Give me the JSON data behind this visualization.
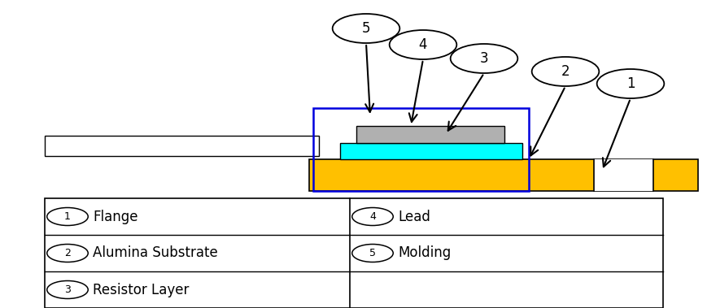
{
  "bg_color": "#ffffff",
  "fig_width": 8.7,
  "fig_height": 3.79,
  "dpi": 100,
  "colors": {
    "gold": "#FFC000",
    "cyan": "#00FFFF",
    "gray": "#B0B0B0",
    "white": "#FFFFFF",
    "blue_outline": "#0000DD",
    "black": "#000000"
  },
  "legend_entries": [
    {
      "col": 0,
      "row": 0,
      "num": "1",
      "text": "Flange"
    },
    {
      "col": 0,
      "row": 1,
      "num": "2",
      "text": "Alumina Substrate"
    },
    {
      "col": 0,
      "row": 2,
      "num": "3",
      "text": "Resistor Layer"
    },
    {
      "col": 1,
      "row": 0,
      "num": "4",
      "text": "Lead"
    },
    {
      "col": 1,
      "row": 1,
      "num": "5",
      "text": "Molding"
    }
  ]
}
